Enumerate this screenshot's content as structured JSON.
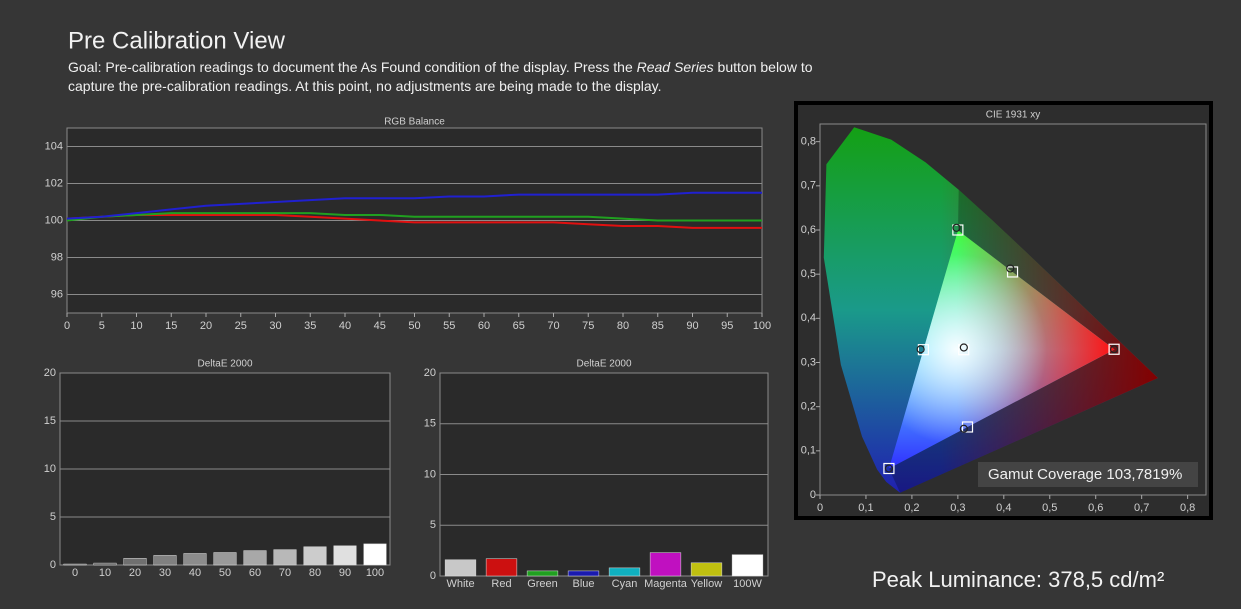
{
  "title": "Pre Calibration View",
  "goal": [
    "Goal: Pre-calibration readings to document the As Found condition of the display. Press the ",
    "Read Series",
    " button below to capture the pre-calibration readings. At this point, no adjustments are being made to the display."
  ],
  "peak_luminance": "Peak Luminance: 378,5 cd/m²",
  "chart_data": [
    {
      "type": "line",
      "title": "RGB Balance",
      "x": [
        0,
        5,
        10,
        15,
        20,
        25,
        30,
        35,
        40,
        45,
        50,
        55,
        60,
        65,
        70,
        75,
        80,
        85,
        90,
        95,
        100
      ],
      "series": [
        {
          "color": "#e01010",
          "values": [
            100.1,
            100.2,
            100.3,
            100.3,
            100.3,
            100.3,
            100.3,
            100.2,
            100.1,
            100.0,
            99.9,
            99.9,
            99.9,
            99.9,
            99.9,
            99.8,
            99.7,
            99.7,
            99.6,
            99.6,
            99.6
          ]
        },
        {
          "color": "#20a020",
          "values": [
            100.0,
            100.2,
            100.3,
            100.4,
            100.4,
            100.4,
            100.4,
            100.4,
            100.3,
            100.3,
            100.2,
            100.2,
            100.2,
            100.2,
            100.2,
            100.2,
            100.1,
            100.0,
            100.0,
            100.0,
            100.0
          ]
        },
        {
          "color": "#2020d0",
          "values": [
            100.1,
            100.2,
            100.4,
            100.6,
            100.8,
            100.9,
            101.0,
            101.1,
            101.2,
            101.2,
            101.2,
            101.3,
            101.3,
            101.4,
            101.4,
            101.4,
            101.4,
            101.4,
            101.5,
            101.5,
            101.5
          ]
        }
      ],
      "xlim": [
        0,
        100
      ],
      "xticks": [
        0,
        5,
        10,
        15,
        20,
        25,
        30,
        35,
        40,
        45,
        50,
        55,
        60,
        65,
        70,
        75,
        80,
        85,
        90,
        95,
        100
      ],
      "ylim": [
        95,
        105
      ],
      "yticks": [
        96,
        98,
        100,
        102,
        104
      ],
      "grid": true
    },
    {
      "type": "bar",
      "title": "DeltaE 2000",
      "categories": [
        "0",
        "10",
        "20",
        "30",
        "40",
        "50",
        "60",
        "70",
        "80",
        "90",
        "100"
      ],
      "values": [
        0.1,
        0.2,
        0.7,
        1.0,
        1.2,
        1.3,
        1.5,
        1.6,
        1.9,
        2.0,
        2.2
      ],
      "colors": [
        "#505050",
        "#5a5a5a",
        "#707070",
        "#808080",
        "#8c8c8c",
        "#9a9a9a",
        "#a8a8a8",
        "#b8b8b8",
        "#cccccc",
        "#e0e0e0",
        "#ffffff"
      ],
      "ylim": [
        0,
        20
      ],
      "yticks": [
        0,
        5,
        10,
        15,
        20
      ],
      "grid": true
    },
    {
      "type": "bar",
      "title": "DeltaE 2000",
      "categories": [
        "White",
        "Red",
        "Green",
        "Blue",
        "Cyan",
        "Magenta",
        "Yellow",
        "100W"
      ],
      "values": [
        1.6,
        1.7,
        0.5,
        0.5,
        0.8,
        2.3,
        1.3,
        2.1
      ],
      "colors": [
        "#c8c8c8",
        "#cc1010",
        "#20a020",
        "#1a1ab0",
        "#10b0c0",
        "#c010c0",
        "#c0c010",
        "#ffffff"
      ],
      "ylim": [
        0,
        20
      ],
      "yticks": [
        0,
        5,
        10,
        15,
        20
      ],
      "grid": true
    },
    {
      "type": "scatter",
      "title": "CIE 1931 xy",
      "annotation": "Gamut Coverage 103,7819%",
      "series": [
        {
          "marker": "square",
          "color": "#ffffff",
          "x": [
            0.64,
            0.3,
            0.15,
            0.3127,
            0.225,
            0.321,
            0.419
          ],
          "y": [
            0.33,
            0.6,
            0.06,
            0.329,
            0.329,
            0.154,
            0.505
          ]
        },
        {
          "marker": "circle",
          "color": "#222222",
          "x": [
            0.64,
            0.297,
            0.15,
            0.313,
            0.219,
            0.313,
            0.414
          ],
          "y": [
            0.33,
            0.605,
            0.06,
            0.334,
            0.33,
            0.15,
            0.513
          ]
        }
      ],
      "xlim": [
        0,
        0.84
      ],
      "xticks": [
        0,
        {
          "value": 0.1,
          "label": "0,1"
        },
        {
          "value": 0.2,
          "label": "0,2"
        },
        {
          "value": 0.3,
          "label": "0,3"
        },
        {
          "value": 0.4,
          "label": "0,4"
        },
        {
          "value": 0.5,
          "label": "0,5"
        },
        {
          "value": 0.6,
          "label": "0,6"
        },
        {
          "value": 0.7,
          "label": "0,7"
        },
        {
          "value": 0.8,
          "label": "0,8"
        }
      ],
      "ylim": [
        0,
        0.84
      ],
      "yticks": [
        0,
        {
          "value": 0.1,
          "label": "0,1"
        },
        {
          "value": 0.2,
          "label": "0,2"
        },
        {
          "value": 0.3,
          "label": "0,3"
        },
        {
          "value": 0.4,
          "label": "0,4"
        },
        {
          "value": 0.5,
          "label": "0,5"
        },
        {
          "value": 0.6,
          "label": "0,6"
        },
        {
          "value": 0.7,
          "label": "0,7"
        },
        {
          "value": 0.8,
          "label": "0,8"
        }
      ],
      "grid": false
    }
  ]
}
